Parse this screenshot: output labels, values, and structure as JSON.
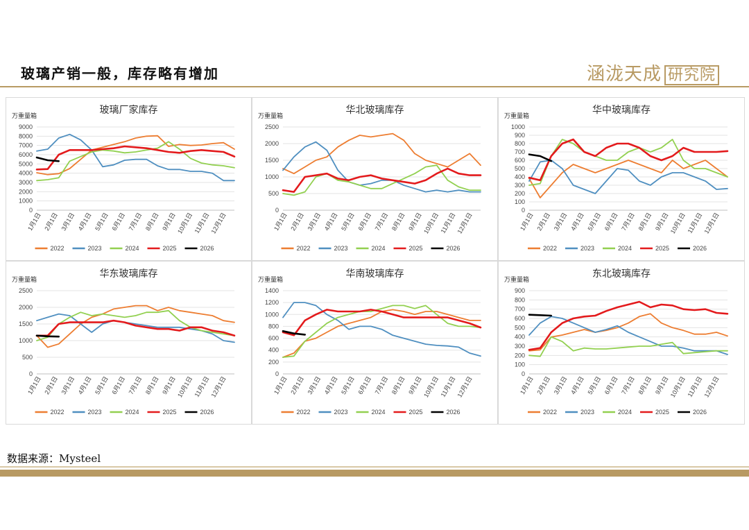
{
  "page": {
    "title": "玻璃产销一般，库存略有增加",
    "logo_text": "涵泷天成",
    "logo_box_text": "研究院",
    "source": "数据来源：Mysteel"
  },
  "colors": {
    "2022": "#ed7d31",
    "2023": "#4f8fc0",
    "2024": "#92d050",
    "2025": "#e31a1c",
    "2026": "#000000",
    "accent": "#b89a63"
  },
  "chart_data": [
    {
      "type": "line",
      "title": "玻璃厂家库存",
      "unit": "万重量箱",
      "ylim": [
        0,
        9000
      ],
      "yticks": [
        0,
        1000,
        2000,
        3000,
        4000,
        5000,
        6000,
        7000,
        8000,
        9000
      ],
      "xticks": [
        "1月1日",
        "2月1日",
        "3月1日",
        "4月1日",
        "5月1日",
        "6月1日",
        "7月1日",
        "8月1日",
        "9月1日",
        "10月1日",
        "11月1日",
        "12月1日"
      ],
      "series": [
        {
          "name": "2022",
          "values": [
            4050,
            3850,
            3950,
            4500,
            5500,
            6500,
            6800,
            7100,
            7400,
            7800,
            8000,
            8050,
            6900,
            7100,
            7000,
            7050,
            7200,
            7300,
            6600
          ]
        },
        {
          "name": "2023",
          "values": [
            6400,
            6600,
            7800,
            8200,
            7600,
            6500,
            4700,
            4900,
            5400,
            5500,
            5500,
            4800,
            4400,
            4400,
            4200,
            4200,
            4000,
            3200,
            3200
          ]
        },
        {
          "name": "2024",
          "values": [
            3200,
            3300,
            3500,
            5300,
            5800,
            6300,
            6500,
            6400,
            6200,
            6300,
            6500,
            6700,
            7400,
            6600,
            5600,
            5100,
            4900,
            4800,
            4600
          ]
        },
        {
          "name": "2025",
          "values": [
            4400,
            4450,
            6000,
            6500,
            6500,
            6500,
            6600,
            6700,
            6900,
            6800,
            6700,
            6500,
            6300,
            6200,
            6400,
            6500,
            6400,
            6300,
            5800
          ]
        },
        {
          "name": "2026",
          "values": [
            5700,
            5400,
            5300
          ]
        }
      ]
    },
    {
      "type": "line",
      "title": "华北玻璃库存",
      "unit": "万重量箱",
      "ylim": [
        0,
        2500
      ],
      "yticks": [
        0,
        500,
        1000,
        1500,
        2000,
        2500
      ],
      "xticks": [
        "1月1日",
        "2月1日",
        "3月1日",
        "4月1日",
        "5月1日",
        "6月1日",
        "7月1日",
        "8月1日",
        "9月1日",
        "10月1日",
        "11月1日",
        "12月1日"
      ],
      "series": [
        {
          "name": "2022",
          "values": [
            1250,
            1100,
            1300,
            1500,
            1600,
            1900,
            2100,
            2250,
            2200,
            2250,
            2300,
            2100,
            1700,
            1500,
            1400,
            1300,
            1500,
            1700,
            1350
          ]
        },
        {
          "name": "2023",
          "values": [
            1200,
            1600,
            1900,
            2050,
            1800,
            1200,
            850,
            750,
            800,
            900,
            900,
            750,
            650,
            550,
            600,
            550,
            600,
            550,
            550
          ]
        },
        {
          "name": "2024",
          "values": [
            500,
            450,
            550,
            1000,
            1100,
            900,
            850,
            750,
            650,
            650,
            800,
            950,
            1100,
            1300,
            1350,
            900,
            700,
            600,
            600
          ]
        },
        {
          "name": "2025",
          "values": [
            600,
            550,
            1000,
            1050,
            1100,
            950,
            900,
            1000,
            1050,
            950,
            900,
            850,
            800,
            900,
            1100,
            1250,
            1100,
            1050,
            1050
          ]
        },
        {
          "name": "2026",
          "values": []
        }
      ]
    },
    {
      "type": "line",
      "title": "华中玻璃库存",
      "unit": "万重量箱",
      "ylim": [
        0,
        1000
      ],
      "yticks": [
        0,
        100,
        200,
        300,
        400,
        500,
        600,
        700,
        800,
        900,
        1000
      ],
      "xticks": [
        "1月1日",
        "2月1日",
        "3月1日",
        "4月1日",
        "5月1日",
        "6月1日",
        "7月1日",
        "8月1日",
        "9月1日",
        "10月1日",
        "11月1日",
        "12月1日"
      ],
      "series": [
        {
          "name": "2022",
          "values": [
            380,
            150,
            300,
            450,
            550,
            500,
            450,
            500,
            550,
            600,
            550,
            500,
            450,
            600,
            500,
            550,
            600,
            500,
            400
          ]
        },
        {
          "name": "2023",
          "values": [
            350,
            580,
            600,
            500,
            300,
            250,
            200,
            350,
            500,
            480,
            350,
            300,
            400,
            450,
            450,
            400,
            350,
            250,
            260
          ]
        },
        {
          "name": "2024",
          "values": [
            300,
            320,
            650,
            850,
            800,
            700,
            650,
            600,
            600,
            700,
            750,
            700,
            750,
            850,
            600,
            500,
            500,
            450,
            400
          ]
        },
        {
          "name": "2025",
          "values": [
            390,
            360,
            650,
            800,
            850,
            700,
            650,
            750,
            800,
            800,
            750,
            650,
            600,
            650,
            750,
            700,
            700,
            700,
            710
          ]
        },
        {
          "name": "2026",
          "values": [
            670,
            650,
            590
          ]
        }
      ]
    },
    {
      "type": "line",
      "title": "华东玻璃库存",
      "unit": "万重量箱",
      "ylim": [
        0,
        2500
      ],
      "yticks": [
        0,
        500,
        1000,
        1500,
        2000,
        2500
      ],
      "xticks": [
        "1月1日",
        "2月1日",
        "3月1日",
        "4月1日",
        "5月1日",
        "6月1日",
        "7月1日",
        "8月1日",
        "9月1日",
        "10月1日",
        "11月1日",
        "12月1日"
      ],
      "series": [
        {
          "name": "2022",
          "values": [
            1150,
            800,
            900,
            1200,
            1500,
            1700,
            1800,
            1950,
            2000,
            2050,
            2050,
            1900,
            2000,
            1900,
            1850,
            1800,
            1750,
            1600,
            1550
          ]
        },
        {
          "name": "2023",
          "values": [
            1600,
            1700,
            1800,
            1750,
            1500,
            1250,
            1500,
            1600,
            1550,
            1500,
            1450,
            1400,
            1400,
            1400,
            1350,
            1300,
            1200,
            1000,
            950
          ]
        },
        {
          "name": "2024",
          "values": [
            1000,
            1100,
            1500,
            1700,
            1850,
            1750,
            1800,
            1750,
            1700,
            1750,
            1850,
            1850,
            1900,
            1600,
            1400,
            1300,
            1250,
            1200,
            1150
          ]
        },
        {
          "name": "2025",
          "values": [
            1150,
            1150,
            1500,
            1550,
            1550,
            1550,
            1550,
            1600,
            1550,
            1450,
            1400,
            1350,
            1350,
            1300,
            1400,
            1400,
            1300,
            1250,
            1150
          ]
        },
        {
          "name": "2026",
          "values": [
            1150,
            1130,
            1120
          ]
        }
      ]
    },
    {
      "type": "line",
      "title": "华南玻璃库存",
      "unit": "万重量箱",
      "ylim": [
        0,
        1400
      ],
      "yticks": [
        0,
        200,
        400,
        600,
        800,
        1000,
        1200,
        1400
      ],
      "xticks": [
        "1月1日",
        "2月1日",
        "3月1日",
        "4月1日",
        "5月1日",
        "6月1日",
        "7月1日",
        "8月1日",
        "9月1日",
        "10月1日",
        "11月1日",
        "12月1日"
      ],
      "series": [
        {
          "name": "2022",
          "values": [
            280,
            350,
            550,
            600,
            700,
            800,
            850,
            900,
            950,
            1050,
            1080,
            1050,
            1000,
            1050,
            1050,
            1000,
            950,
            900,
            900
          ]
        },
        {
          "name": "2023",
          "values": [
            950,
            1200,
            1200,
            1150,
            1000,
            900,
            750,
            800,
            800,
            750,
            650,
            600,
            550,
            500,
            480,
            470,
            450,
            350,
            300
          ]
        },
        {
          "name": "2024",
          "values": [
            280,
            300,
            550,
            700,
            850,
            950,
            1000,
            1050,
            1050,
            1100,
            1150,
            1150,
            1100,
            1150,
            1000,
            850,
            800,
            800,
            780
          ]
        },
        {
          "name": "2025",
          "values": [
            700,
            650,
            900,
            1000,
            1080,
            1050,
            1050,
            1050,
            1080,
            1050,
            1000,
            950,
            950,
            950,
            950,
            950,
            900,
            850,
            780
          ]
        },
        {
          "name": "2026",
          "values": [
            720,
            680,
            660
          ]
        }
      ]
    },
    {
      "type": "line",
      "title": "东北玻璃库存",
      "unit": "万重量箱",
      "ylim": [
        0,
        900
      ],
      "yticks": [
        0,
        100,
        200,
        300,
        400,
        500,
        600,
        700,
        800,
        900
      ],
      "xticks": [
        "1月1日",
        "2月1日",
        "3月1日",
        "4月1日",
        "5月1日",
        "6月1日",
        "7月1日",
        "8月1日",
        "9月1日",
        "10月1日",
        "11月1日",
        "12月1日"
      ],
      "series": [
        {
          "name": "2022",
          "values": [
            250,
            260,
            400,
            420,
            450,
            480,
            450,
            470,
            500,
            550,
            620,
            650,
            550,
            500,
            470,
            430,
            430,
            450,
            410
          ]
        },
        {
          "name": "2023",
          "values": [
            420,
            550,
            620,
            600,
            550,
            500,
            450,
            480,
            520,
            450,
            400,
            350,
            300,
            300,
            280,
            250,
            250,
            250,
            210
          ]
        },
        {
          "name": "2024",
          "values": [
            200,
            190,
            400,
            350,
            250,
            280,
            270,
            270,
            280,
            290,
            300,
            300,
            320,
            340,
            220,
            230,
            240,
            250,
            250
          ]
        },
        {
          "name": "2025",
          "values": [
            260,
            280,
            450,
            550,
            600,
            620,
            630,
            680,
            720,
            750,
            780,
            720,
            750,
            740,
            700,
            690,
            700,
            660,
            650
          ]
        },
        {
          "name": "2026",
          "values": [
            640,
            635,
            630
          ]
        }
      ]
    }
  ]
}
